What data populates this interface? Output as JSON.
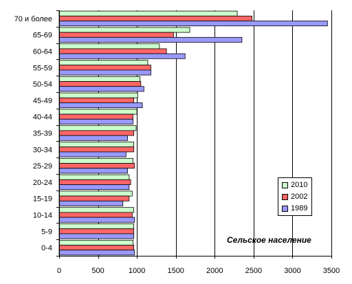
{
  "chart_data": {
    "type": "bar",
    "orientation": "horizontal",
    "categories": [
      "70 и более",
      "65-69",
      "60-64",
      "55-59",
      "50-54",
      "45-49",
      "40-44",
      "35-39",
      "30-34",
      "25-29",
      "20-24",
      "15-19",
      "10-14",
      "5-9",
      "0-4"
    ],
    "series": [
      {
        "name": "2010",
        "color": "#ccffcc",
        "values": [
          2290,
          1680,
          1290,
          1140,
          1040,
          1010,
          1000,
          990,
          960,
          950,
          900,
          940,
          960,
          960,
          950
        ]
      },
      {
        "name": "2002",
        "color": "#ff6666",
        "values": [
          2480,
          1470,
          1380,
          1180,
          1050,
          960,
          950,
          960,
          960,
          970,
          920,
          900,
          940,
          960,
          960
        ]
      },
      {
        "name": "1989",
        "color": "#9999ff",
        "values": [
          3450,
          2350,
          1620,
          1180,
          1090,
          1070,
          950,
          880,
          860,
          880,
          900,
          820,
          970,
          960,
          970
        ]
      }
    ],
    "xlim": [
      0,
      3500
    ],
    "xticks": [
      0,
      500,
      1000,
      1500,
      2000,
      2500,
      3000,
      3500
    ],
    "annotation": "Сельское население",
    "legend_placement": "bottom-right",
    "grid": "vertical"
  }
}
